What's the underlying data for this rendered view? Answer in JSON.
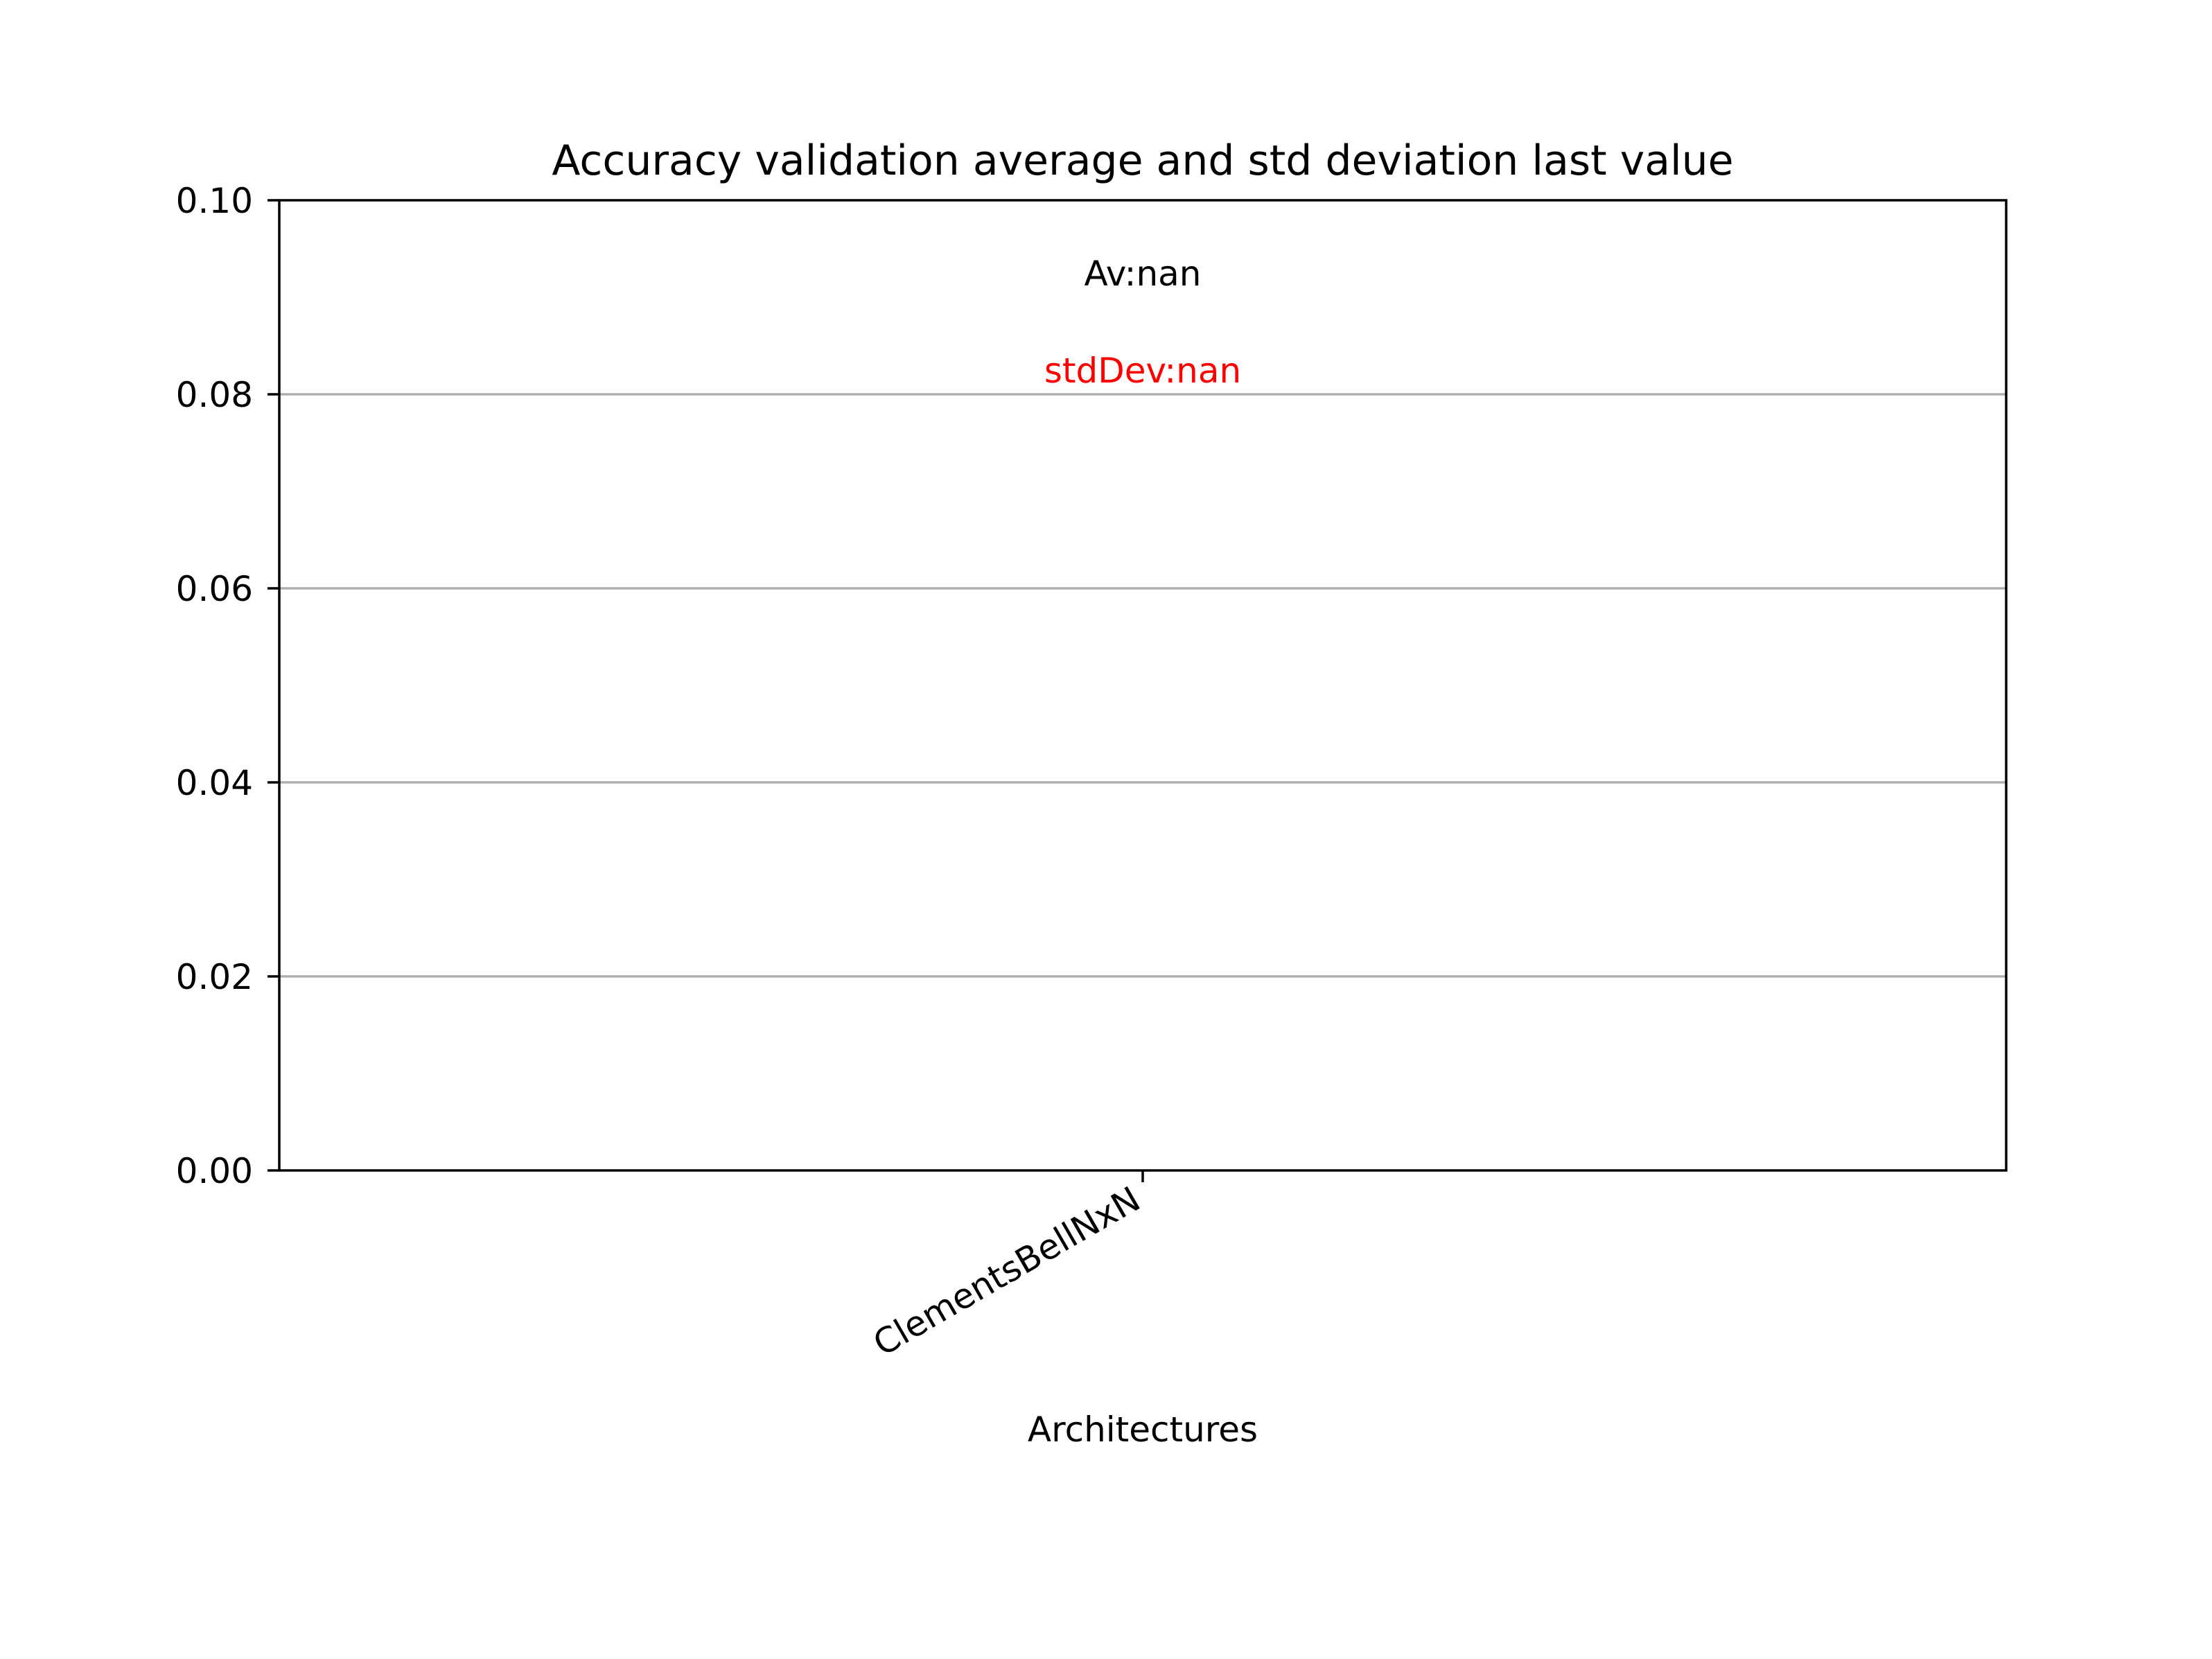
{
  "chart_data": {
    "type": "bar",
    "title": "Accuracy validation average and std deviation last value",
    "xlabel": "Architectures",
    "ylabel": "",
    "categories": [
      "ClementsBellNxN"
    ],
    "values": [
      null
    ],
    "ylim": [
      0,
      0.1
    ],
    "yticks": [
      "0.00",
      "0.02",
      "0.04",
      "0.06",
      "0.08",
      "0.10"
    ],
    "grid": "horizontal",
    "annotations": [
      {
        "text": "Av:nan",
        "color": "#000000"
      },
      {
        "text": "stdDev:nan",
        "color": "#ff0000"
      }
    ],
    "colors": {
      "grid": "#b0b0b0",
      "axis": "#000000",
      "std_annotation": "#ff0000"
    }
  }
}
